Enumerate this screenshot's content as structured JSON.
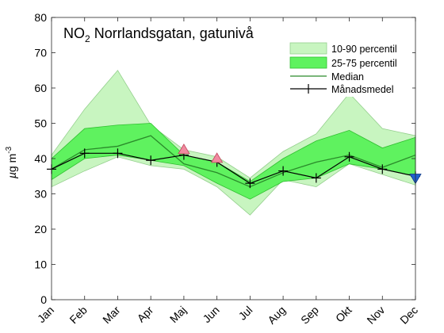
{
  "chart_data": {
    "type": "area",
    "title": "NO",
    "title_subscript": "2",
    "title_rest": " Norrlandsgatan, gatunivå",
    "ylabel_mu": "µ",
    "ylabel_unit": "g m",
    "ylabel_exp": "-3",
    "ylim": [
      0,
      80
    ],
    "yticks": [
      0,
      10,
      20,
      30,
      40,
      50,
      60,
      70,
      80
    ],
    "categories": [
      "Jan",
      "Feb",
      "Mar",
      "Apr",
      "Maj",
      "Jun",
      "Jul",
      "Aug",
      "Sep",
      "Okt",
      "Nov",
      "Dec"
    ],
    "grid": false,
    "legend_position": "top-right",
    "series": [
      {
        "name": "10-90 percentil",
        "kind": "band",
        "color": "#c8f5c0",
        "low": [
          32,
          36.5,
          40.5,
          38,
          37,
          32,
          24,
          34,
          32,
          38.5,
          35.5,
          32.5
        ],
        "high": [
          41,
          54,
          65,
          49.5,
          42.5,
          40.5,
          34.5,
          42,
          47,
          58.5,
          48.5,
          46.5
        ]
      },
      {
        "name": "25-75 percentil",
        "kind": "band",
        "color": "#5ff25f",
        "low": [
          34,
          40,
          41,
          39.5,
          38,
          33,
          28.5,
          33.5,
          34.5,
          38.5,
          37,
          35
        ],
        "high": [
          40,
          48.5,
          49.5,
          50,
          41,
          39,
          33.5,
          40,
          45,
          48,
          43,
          46
        ]
      },
      {
        "name": "Median",
        "kind": "line",
        "color": "#2a8a2a",
        "values": [
          37,
          42.5,
          43.5,
          46.5,
          38.5,
          36,
          32,
          36,
          39,
          41,
          37.5,
          41
        ]
      },
      {
        "name": "Månadsmedel",
        "kind": "line-marker",
        "color": "#000000",
        "values": [
          37,
          41.5,
          41.5,
          39.5,
          41,
          39,
          33,
          36.5,
          34.5,
          40.5,
          37,
          35
        ]
      }
    ],
    "markers": [
      {
        "category": "Maj",
        "value": 42.5,
        "shape": "triangle-up",
        "color": "#f08aa0"
      },
      {
        "category": "Jun",
        "value": 40,
        "shape": "triangle-up",
        "color": "#f08aa0"
      },
      {
        "category": "Dec",
        "value": 34.5,
        "shape": "triangle-down",
        "color": "#1f5fcf"
      }
    ]
  }
}
